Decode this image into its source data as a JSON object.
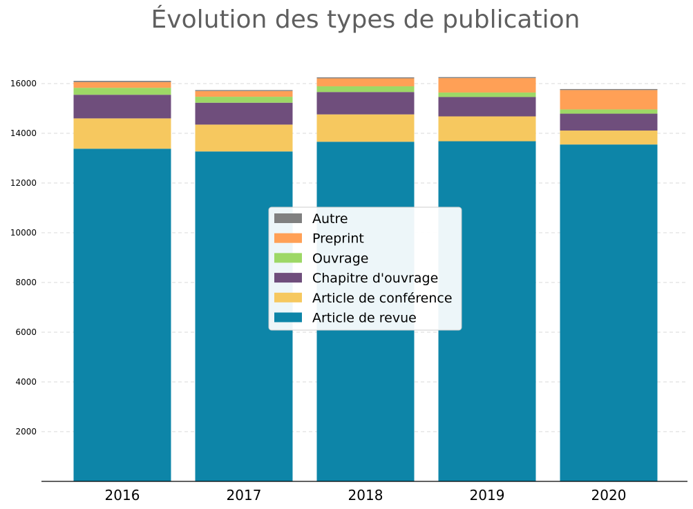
{
  "chart_data": {
    "type": "bar",
    "stacked": true,
    "title": "Évolution des types de publication",
    "xlabel": "",
    "ylabel": "",
    "categories": [
      "2016",
      "2017",
      "2018",
      "2019",
      "2020"
    ],
    "ylim": [
      0,
      16800
    ],
    "yticks": [
      2000,
      4000,
      6000,
      8000,
      10000,
      12000,
      14000,
      16000
    ],
    "grid": "horizontal-dashed",
    "legend_position": "center",
    "series": [
      {
        "name": "Article de revue",
        "color": "#0d85a8",
        "values": [
          13380,
          13270,
          13660,
          13680,
          13550
        ]
      },
      {
        "name": "Article de conférence",
        "color": "#f6c85f",
        "values": [
          1220,
          1080,
          1100,
          1000,
          560
        ]
      },
      {
        "name": "Chapitre d'ouvrage",
        "color": "#6f4e7c",
        "values": [
          950,
          880,
          900,
          780,
          680
        ]
      },
      {
        "name": "Ouvrage",
        "color": "#9dd866",
        "values": [
          280,
          240,
          230,
          180,
          170
        ]
      },
      {
        "name": "Preprint",
        "color": "#ffa056",
        "values": [
          230,
          230,
          320,
          580,
          780
        ]
      },
      {
        "name": "Autre",
        "color": "#808080",
        "values": [
          50,
          40,
          40,
          40,
          40
        ]
      }
    ]
  }
}
